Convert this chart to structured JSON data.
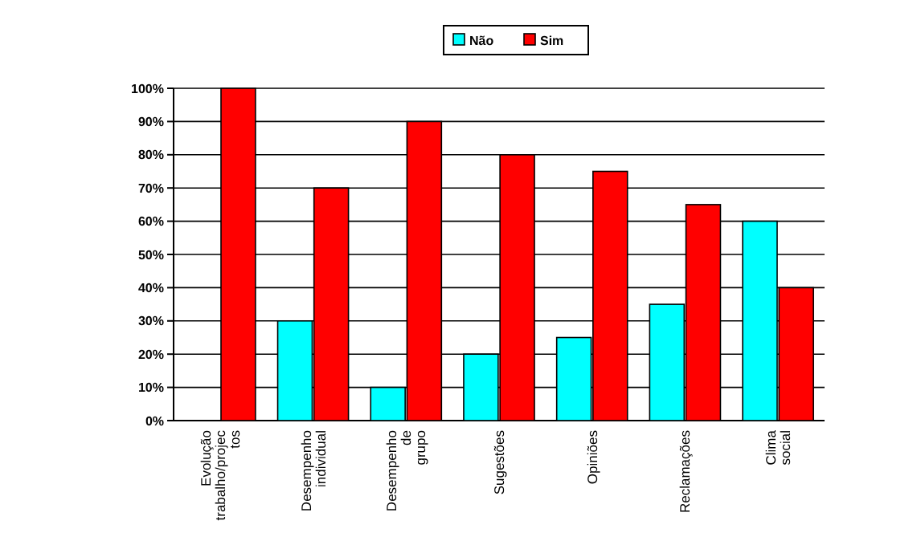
{
  "chart_data": {
    "type": "bar",
    "categories": [
      "Evolução trabalho/projectos",
      "Desempenho individual",
      "Desempenho de grupo",
      "Sugestões",
      "Opiniões",
      "Reclamações",
      "Clima social"
    ],
    "series": [
      {
        "name": "Não",
        "color": "#00ffff",
        "values": [
          0,
          30,
          10,
          20,
          25,
          35,
          60
        ]
      },
      {
        "name": "Sim",
        "color": "#ff0000",
        "values": [
          100,
          70,
          90,
          80,
          75,
          65,
          40
        ]
      }
    ],
    "ylim": [
      0,
      100
    ],
    "yticks": [
      {
        "value": 0,
        "label": "0%"
      },
      {
        "value": 10,
        "label": "10%"
      },
      {
        "value": 20,
        "label": "20%"
      },
      {
        "value": 30,
        "label": "30%"
      },
      {
        "value": 40,
        "label": "40%"
      },
      {
        "value": 50,
        "label": "50%"
      },
      {
        "value": 60,
        "label": "60%"
      },
      {
        "value": 70,
        "label": "70%"
      },
      {
        "value": 80,
        "label": "80%"
      },
      {
        "value": 90,
        "label": "90%"
      },
      {
        "value": 100,
        "label": "100%"
      }
    ],
    "grid": "y",
    "legend": "top"
  }
}
